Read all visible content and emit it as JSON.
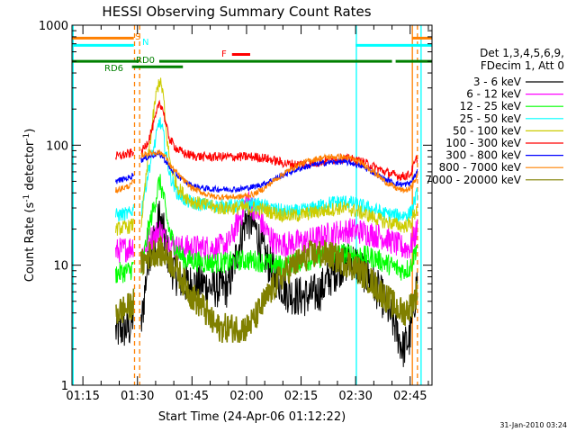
{
  "chart_data": {
    "type": "line",
    "title": "HESSI Observing Summary Count Rates",
    "xlabel": "Start Time (24-Apr-06 01:12:22)",
    "ylabel_main": "Count Rate (s",
    "ylabel_sup1": "-1",
    "ylabel_mid": " detector",
    "ylabel_sup2": "-1",
    "ylabel_end": ")",
    "yscale": "log",
    "xlim": [
      72,
      171
    ],
    "ylim": [
      1,
      1000
    ],
    "x_ticks": [
      {
        "label": "01:15",
        "x": 75
      },
      {
        "label": "01:30",
        "x": 90
      },
      {
        "label": "01:45",
        "x": 105
      },
      {
        "label": "02:00",
        "x": 120
      },
      {
        "label": "02:15",
        "x": 135
      },
      {
        "label": "02:30",
        "x": 150
      },
      {
        "label": "02:45",
        "x": 165
      }
    ],
    "y_ticks": [
      {
        "label": "1",
        "y": 1
      },
      {
        "label": "10",
        "y": 10
      },
      {
        "label": "100",
        "y": 100
      },
      {
        "label": "1000",
        "y": 1000
      }
    ],
    "legend_header": [
      "Det 1,3,4,5,6,9,",
      "FDecim 1, Att 0"
    ],
    "legend_position": "right",
    "timestamp": "31-Jan-2010 03:24",
    "flags": [
      {
        "label": "S",
        "color": "#ff8000",
        "level": 780,
        "segments": [
          [
            72,
            89
          ],
          [
            165.5,
            171
          ]
        ]
      },
      {
        "label": "N",
        "color": "#00ffff",
        "level": 680,
        "segments": [
          [
            72,
            89
          ],
          [
            150,
            171
          ]
        ]
      },
      {
        "label": "F",
        "color": "#ff0000",
        "level": 570,
        "segments": [
          [
            116,
            121
          ]
        ]
      },
      {
        "label": "RD0",
        "color": "#008000",
        "level": 500,
        "segments": [
          [
            72,
            90.5
          ],
          [
            96,
            160
          ],
          [
            161,
            171
          ]
        ]
      },
      {
        "label": "RD6",
        "color": "#008000",
        "level": 450,
        "segments": [
          [
            88.5,
            102.5
          ]
        ]
      }
    ],
    "vertical_lines": [
      {
        "x": 72.3,
        "color": "#00ffff",
        "style": "solid"
      },
      {
        "x": 89.2,
        "color": "#ff8000",
        "style": "dashed"
      },
      {
        "x": 90.6,
        "color": "#ff8000",
        "style": "dashed"
      },
      {
        "x": 150.2,
        "color": "#00ffff",
        "style": "solid"
      },
      {
        "x": 165.6,
        "color": "#ff8000",
        "style": "solid"
      },
      {
        "x": 167.0,
        "color": "#ff8000",
        "style": "dashed"
      },
      {
        "x": 168.0,
        "color": "#00ffff",
        "style": "solid"
      }
    ],
    "segments": [
      [
        84,
        89
      ],
      [
        91,
        167
      ]
    ],
    "series": [
      {
        "name": "3 - 6 keV",
        "color": "#000000",
        "x": [
          84,
          88,
          89,
          91,
          93,
          95,
          96,
          97,
          98,
          99,
          101,
          103,
          105,
          108,
          110,
          112,
          115,
          118,
          120,
          122,
          125,
          128,
          131,
          134,
          137,
          140,
          143,
          146,
          149,
          152,
          155,
          158,
          161,
          163,
          165,
          167
        ],
        "y": [
          2.8,
          3.0,
          4.0,
          3.0,
          12,
          18,
          25,
          20,
          14,
          10,
          8,
          7,
          7,
          7,
          6.5,
          6.5,
          6.5,
          15,
          25,
          22,
          12,
          8,
          6,
          5.5,
          5.5,
          6,
          8,
          10,
          11,
          9,
          7,
          5,
          3,
          2.0,
          2.5,
          8
        ]
      },
      {
        "name": "6 - 12 keV",
        "color": "#ff00ff",
        "x": [
          84,
          88,
          89,
          91,
          93,
          95,
          96,
          97,
          98,
          99,
          101,
          103,
          105,
          108,
          110,
          112,
          115,
          118,
          120,
          122,
          125,
          128,
          131,
          134,
          137,
          140,
          143,
          146,
          149,
          152,
          155,
          158,
          161,
          163,
          165,
          167
        ],
        "y": [
          13,
          14,
          15,
          12,
          16,
          18,
          20,
          18,
          16,
          15,
          14,
          14,
          14,
          14,
          14,
          14,
          15,
          24,
          35,
          30,
          20,
          15,
          15,
          15.5,
          16,
          17,
          18,
          19,
          19.5,
          19,
          18,
          17,
          15,
          14,
          14,
          20
        ]
      },
      {
        "name": "12 - 25 keV",
        "color": "#00ff00",
        "x": [
          84,
          88,
          89,
          91,
          93,
          95,
          96,
          97,
          98,
          99,
          101,
          103,
          105,
          108,
          110,
          112,
          115,
          118,
          120,
          122,
          125,
          128,
          131,
          134,
          137,
          140,
          143,
          146,
          149,
          152,
          155,
          158,
          161,
          163,
          165,
          167
        ],
        "y": [
          8.5,
          9.0,
          10,
          8.5,
          20,
          35,
          50,
          40,
          25,
          18,
          13,
          11,
          11,
          10.5,
          10.5,
          10.5,
          10.5,
          11,
          11,
          11,
          10.5,
          10,
          10,
          10.5,
          11,
          11.5,
          12,
          12.5,
          12.5,
          12,
          11.5,
          10.5,
          9.5,
          9.0,
          9.5,
          15
        ]
      },
      {
        "name": "25 - 50 keV",
        "color": "#00ffff",
        "x": [
          84,
          88,
          89,
          91,
          93,
          95,
          96,
          97,
          98,
          99,
          101,
          103,
          105,
          108,
          110,
          112,
          115,
          118,
          120,
          122,
          125,
          128,
          131,
          134,
          137,
          140,
          143,
          146,
          149,
          152,
          155,
          158,
          161,
          163,
          165,
          167
        ],
        "y": [
          26,
          27,
          30,
          28,
          60,
          110,
          160,
          130,
          80,
          55,
          40,
          35,
          33,
          32,
          31.5,
          31,
          31,
          31.5,
          32,
          32,
          31,
          29,
          28,
          28,
          29,
          31,
          33,
          34,
          33,
          31,
          29,
          27,
          26,
          26,
          27,
          40
        ]
      },
      {
        "name": "50 - 100 keV",
        "color": "#cccc00",
        "x": [
          84,
          88,
          89,
          91,
          93,
          95,
          96,
          97,
          98,
          99,
          101,
          103,
          105,
          108,
          110,
          112,
          115,
          118,
          120,
          122,
          125,
          128,
          131,
          134,
          137,
          140,
          143,
          146,
          149,
          152,
          155,
          158,
          161,
          163,
          165,
          167
        ],
        "y": [
          20,
          21,
          22,
          22,
          80,
          250,
          350,
          280,
          120,
          70,
          45,
          38,
          34,
          32,
          31,
          30,
          30,
          30,
          30,
          30,
          29,
          27,
          26,
          26,
          27,
          28,
          29,
          30,
          29,
          27,
          25,
          23,
          22,
          21,
          22,
          30
        ]
      },
      {
        "name": "100 - 300 keV",
        "color": "#ff0000",
        "x": [
          84,
          88,
          89,
          91,
          93,
          95,
          96,
          97,
          98,
          99,
          101,
          103,
          105,
          108,
          110,
          112,
          115,
          118,
          120,
          122,
          125,
          128,
          131,
          134,
          137,
          140,
          143,
          146,
          149,
          152,
          155,
          158,
          161,
          163,
          165,
          167
        ],
        "y": [
          80,
          85,
          90,
          85,
          110,
          170,
          230,
          200,
          140,
          110,
          92,
          85,
          82,
          80,
          80,
          80,
          80,
          80,
          80,
          80,
          78,
          74,
          70,
          69,
          70,
          72,
          75,
          78,
          76,
          72,
          66,
          60,
          56,
          55,
          57,
          80
        ]
      },
      {
        "name": "300 - 800 keV",
        "color": "#0000ff",
        "x": [
          84,
          88,
          89,
          91,
          93,
          95,
          96,
          97,
          98,
          99,
          101,
          103,
          105,
          108,
          110,
          112,
          115,
          118,
          120,
          122,
          125,
          128,
          131,
          134,
          137,
          140,
          143,
          146,
          149,
          152,
          155,
          158,
          161,
          163,
          165,
          167
        ],
        "y": [
          50,
          54,
          58,
          75,
          80,
          84,
          84,
          80,
          72,
          64,
          56,
          50,
          46,
          44,
          43,
          43,
          43,
          43,
          44,
          45,
          48,
          53,
          58,
          63,
          67,
          70,
          72,
          73,
          71,
          66,
          59,
          52,
          48,
          47,
          48,
          60
        ]
      },
      {
        "name": "800 - 7000 keV",
        "color": "#ff8000",
        "x": [
          84,
          88,
          89,
          91,
          93,
          95,
          96,
          97,
          98,
          99,
          101,
          103,
          105,
          108,
          110,
          112,
          115,
          118,
          120,
          122,
          125,
          128,
          131,
          134,
          137,
          140,
          143,
          146,
          149,
          152,
          155,
          158,
          161,
          163,
          165,
          167
        ],
        "y": [
          42,
          46,
          50,
          82,
          86,
          87,
          87,
          85,
          78,
          68,
          58,
          50,
          44,
          40,
          38,
          37,
          37,
          37,
          38,
          39,
          44,
          52,
          60,
          68,
          74,
          78,
          80,
          80,
          77,
          70,
          60,
          50,
          44,
          42,
          43,
          55
        ]
      },
      {
        "name": "7000 - 20000 keV",
        "color": "#808000",
        "x": [
          84,
          88,
          89,
          91,
          93,
          95,
          96,
          97,
          98,
          99,
          101,
          103,
          105,
          108,
          110,
          112,
          115,
          118,
          120,
          122,
          125,
          128,
          131,
          134,
          137,
          140,
          143,
          146,
          149,
          152,
          155,
          158,
          161,
          163,
          165,
          167
        ],
        "y": [
          4.0,
          4.5,
          5.0,
          10,
          12,
          13,
          13,
          12.5,
          12,
          11,
          9,
          7,
          5.5,
          4.5,
          3.5,
          3,
          3,
          3,
          3,
          3.5,
          5,
          7,
          9,
          10.5,
          12,
          12.5,
          12,
          11,
          10,
          8.5,
          7,
          5.5,
          4.5,
          4.0,
          4.5,
          6
        ]
      }
    ]
  }
}
